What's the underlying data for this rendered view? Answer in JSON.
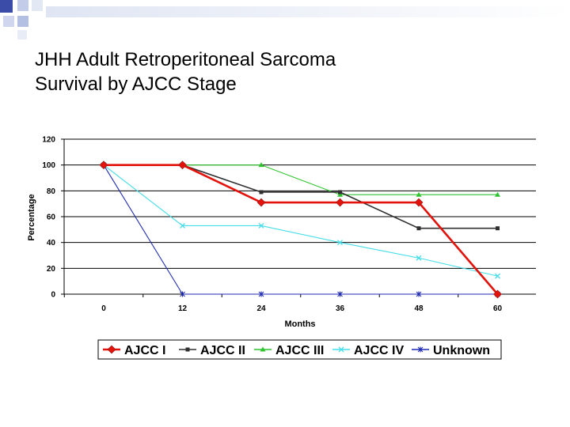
{
  "slide": {
    "title_line1": "JHH Adult Retroperitoneal Sarcoma",
    "title_line2": "Survival by AJCC Stage",
    "accent_colors": [
      "#3b4ba8",
      "#b9c4e3",
      "#eef1f8"
    ]
  },
  "chart_data": {
    "type": "line",
    "title": "",
    "xlabel": "Months",
    "ylabel": "Percentage",
    "x": [
      0,
      12,
      24,
      36,
      48,
      60
    ],
    "xticks": [
      "0",
      "12",
      "24",
      "36",
      "48",
      "60"
    ],
    "yticks": [
      "0",
      "20",
      "40",
      "60",
      "80",
      "100",
      "120"
    ],
    "ylim": [
      0,
      120
    ],
    "grid": "horizontal",
    "legend_position": "bottom",
    "series": [
      {
        "name": "AJCC I",
        "color": "#e3120b",
        "marker": "diamond",
        "values": [
          100,
          100,
          71,
          71,
          71,
          0
        ]
      },
      {
        "name": "AJCC II",
        "color": "#303030",
        "marker": "square",
        "values": [
          100,
          100,
          79,
          79,
          51,
          51
        ]
      },
      {
        "name": "AJCC III",
        "color": "#2fc42f",
        "marker": "triangle",
        "values": [
          100,
          100,
          100,
          77,
          77,
          77
        ]
      },
      {
        "name": "AJCC IV",
        "color": "#44dde8",
        "marker": "x",
        "values": [
          100,
          53,
          53,
          40,
          28,
          14
        ]
      },
      {
        "name": "Unknown",
        "color": "#1f2bb0",
        "marker": "star",
        "values": [
          100,
          0,
          0,
          0,
          0,
          0
        ]
      }
    ]
  }
}
